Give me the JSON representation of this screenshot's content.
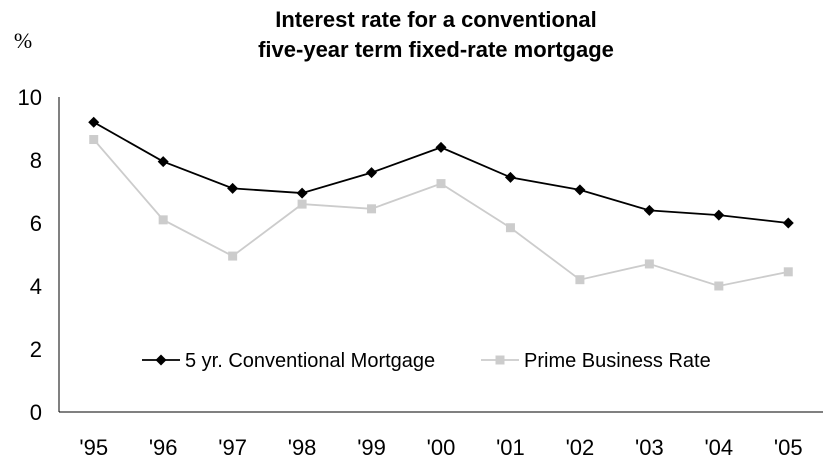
{
  "chart_data": {
    "type": "line",
    "title_lines": [
      "Interest rate for a conventional",
      "five-year term fixed-rate mortgage"
    ],
    "ylabel": "%",
    "xlabel": "",
    "categories": [
      "'95",
      "'96",
      "'97",
      "'98",
      "'99",
      "'00",
      "'01",
      "'02",
      "'03",
      "'04",
      "'05"
    ],
    "ylim": [
      0,
      10
    ],
    "yticks": [
      "0",
      "2",
      "4",
      "6",
      "8",
      "10"
    ],
    "grid": false,
    "legend_position": "inside-bottom",
    "series": [
      {
        "name": "5 yr. Conventional Mortgage",
        "color": "#000000",
        "marker": "diamond",
        "values": [
          9.2,
          7.95,
          7.1,
          6.95,
          7.6,
          8.4,
          7.45,
          7.05,
          6.4,
          6.25,
          6.0
        ]
      },
      {
        "name": "Prime Business Rate",
        "color": "#cccccc",
        "marker": "square",
        "values": [
          8.65,
          6.1,
          4.95,
          6.6,
          6.45,
          7.25,
          5.85,
          4.2,
          4.7,
          4.0,
          4.45
        ]
      }
    ]
  }
}
